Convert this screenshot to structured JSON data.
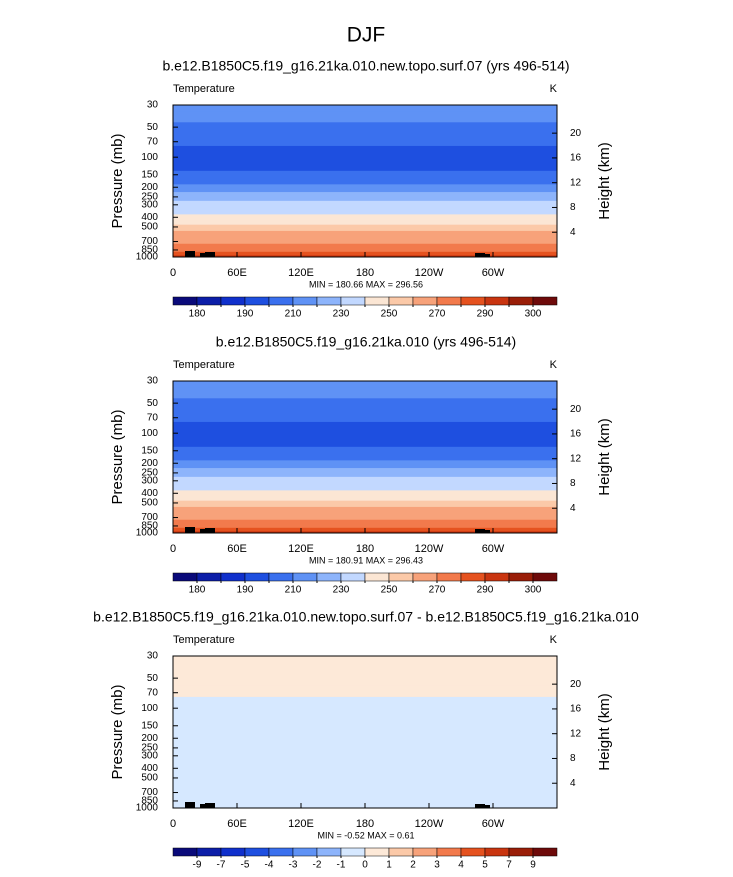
{
  "title": "DJF",
  "chart_data": [
    {
      "type": "contour",
      "title": "b.e12.B1850C5.f19_g16.21ka.010.new.topo.surf.07 (yrs 496-514)",
      "left_label": "Temperature",
      "right_label": "K",
      "ylabel": "Pressure (mb)",
      "y2label": "Height (km)",
      "xlim": [
        0,
        360
      ],
      "xticks": [
        0,
        {
          "value": 60,
          "label": "60E"
        },
        {
          "value": 120,
          "label": "120E"
        },
        180,
        {
          "value": 240,
          "label": "120W"
        },
        {
          "value": 300,
          "label": "60W"
        }
      ],
      "ylim": [
        1000,
        30
      ],
      "ylog": true,
      "yticks": [
        30,
        50,
        70,
        100,
        150,
        200,
        250,
        300,
        400,
        500,
        700,
        850,
        1000
      ],
      "y2ticks": [
        4,
        8,
        12,
        16,
        20
      ],
      "stats_label": "MIN = 180.66  MAX = 296.56",
      "levels": [
        180,
        185,
        190,
        200,
        210,
        220,
        230,
        240,
        250,
        260,
        270,
        280,
        290,
        295,
        300
      ],
      "level_label_stride": 2,
      "colors": [
        "#0a0a7a",
        "#0c1ea8",
        "#1030cc",
        "#1e4fe0",
        "#3a70ee",
        "#5f92f5",
        "#8db4fb",
        "#c2d8ff",
        "#fbe6d4",
        "#fbc9a8",
        "#f7a27a",
        "#f27a4c",
        "#e5521f",
        "#c93510",
        "#9a1e08",
        "#6e0a0a"
      ],
      "profile": {
        "pressure": [
          30,
          40,
          50,
          60,
          70,
          85,
          100,
          125,
          150,
          175,
          200,
          250,
          300,
          350,
          400,
          450,
          500,
          600,
          700,
          775,
          850,
          925,
          1000
        ],
        "values": [
          216,
          213,
          209,
          205,
          202,
          197,
          193,
          196,
          203,
          209,
          214,
          222,
          230,
          236,
          243,
          249,
          254,
          262,
          269,
          274,
          279,
          285,
          292
        ]
      }
    },
    {
      "type": "contour",
      "title": "b.e12.B1850C5.f19_g16.21ka.010 (yrs 496-514)",
      "left_label": "Temperature",
      "right_label": "K",
      "ylabel": "Pressure (mb)",
      "y2label": "Height (km)",
      "xlim": [
        0,
        360
      ],
      "xticks": [
        0,
        {
          "value": 60,
          "label": "60E"
        },
        {
          "value": 120,
          "label": "120E"
        },
        180,
        {
          "value": 240,
          "label": "120W"
        },
        {
          "value": 300,
          "label": "60W"
        }
      ],
      "ylim": [
        1000,
        30
      ],
      "ylog": true,
      "yticks": [
        30,
        50,
        70,
        100,
        150,
        200,
        250,
        300,
        400,
        500,
        700,
        850,
        1000
      ],
      "y2ticks": [
        4,
        8,
        12,
        16,
        20
      ],
      "stats_label": "MIN = 180.91  MAX = 296.43",
      "levels": [
        180,
        185,
        190,
        200,
        210,
        220,
        230,
        240,
        250,
        260,
        270,
        280,
        290,
        295,
        300
      ],
      "level_label_stride": 2,
      "colors": [
        "#0a0a7a",
        "#0c1ea8",
        "#1030cc",
        "#1e4fe0",
        "#3a70ee",
        "#5f92f5",
        "#8db4fb",
        "#c2d8ff",
        "#fbe6d4",
        "#fbc9a8",
        "#f7a27a",
        "#f27a4c",
        "#e5521f",
        "#c93510",
        "#9a1e08",
        "#6e0a0a"
      ],
      "profile": {
        "pressure": [
          30,
          40,
          50,
          60,
          70,
          85,
          100,
          125,
          150,
          175,
          200,
          250,
          300,
          350,
          400,
          450,
          500,
          600,
          700,
          775,
          850,
          925,
          1000
        ],
        "values": [
          216,
          213,
          209,
          205,
          202,
          197,
          193,
          196,
          203,
          209,
          214,
          222,
          230,
          236,
          243,
          249,
          254,
          262,
          269,
          274,
          279,
          285,
          292
        ]
      }
    },
    {
      "type": "contour",
      "title": "b.e12.B1850C5.f19_g16.21ka.010.new.topo.surf.07 - b.e12.B1850C5.f19_g16.21ka.010",
      "left_label": "Temperature",
      "right_label": "K",
      "ylabel": "Pressure (mb)",
      "y2label": "Height (km)",
      "xlim": [
        0,
        360
      ],
      "xticks": [
        0,
        {
          "value": 60,
          "label": "60E"
        },
        {
          "value": 120,
          "label": "120E"
        },
        180,
        {
          "value": 240,
          "label": "120W"
        },
        {
          "value": 300,
          "label": "60W"
        }
      ],
      "ylim": [
        1000,
        30
      ],
      "ylog": true,
      "yticks": [
        30,
        50,
        70,
        100,
        150,
        200,
        250,
        300,
        400,
        500,
        700,
        850,
        1000
      ],
      "y2ticks": [
        4,
        8,
        12,
        16,
        20
      ],
      "stats_label": "MIN = -0.52  MAX =   0.61",
      "levels": [
        -9,
        -7,
        -5,
        -4,
        -3,
        -2,
        -1,
        0,
        1,
        2,
        3,
        4,
        5,
        7,
        9
      ],
      "level_label_stride": 1,
      "colors": [
        "#0a0a7a",
        "#0c1ea8",
        "#1030cc",
        "#1e4fe0",
        "#3a70ee",
        "#5f92f5",
        "#8db4fb",
        "#d6e8ff",
        "#fde9d8",
        "#fbc9a8",
        "#f7a27a",
        "#f27a4c",
        "#e5521f",
        "#c93510",
        "#9a1e08",
        "#6e0a0a"
      ],
      "profile": {
        "pressure": [
          30,
          50,
          70,
          85,
          100,
          150,
          200,
          300,
          400,
          500,
          700,
          850,
          1000
        ],
        "values": [
          0.2,
          0.2,
          0.1,
          -0.1,
          -0.2,
          -0.2,
          -0.1,
          -0.1,
          -0.1,
          -0.2,
          -0.1,
          -0.1,
          -0.1
        ]
      }
    }
  ]
}
